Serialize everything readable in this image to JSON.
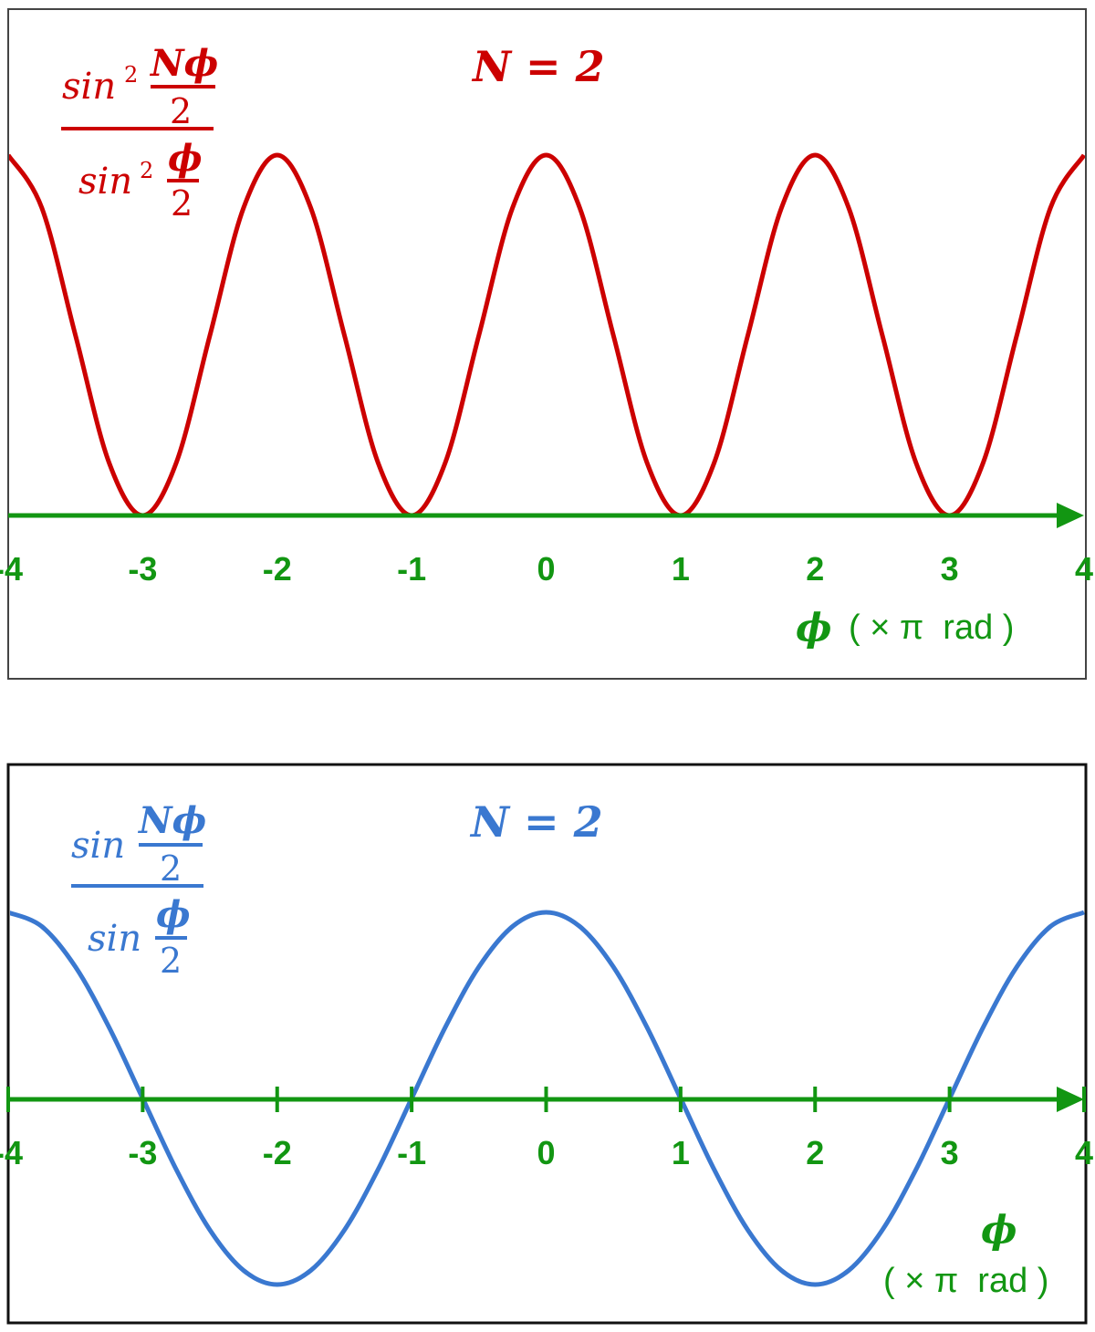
{
  "colors": {
    "top_curve": "#cc0000",
    "bottom_curve": "#3a78d0",
    "axis": "#129612",
    "frame": "#111111"
  },
  "chart_data": [
    {
      "type": "line",
      "title": "N = 2",
      "formula": {
        "num_fn": "sin",
        "num_power": "2",
        "num_arg_top": "Nϕ",
        "num_arg_bottom": "2",
        "den_fn": "sin",
        "den_power": "2",
        "den_arg_top": "ϕ",
        "den_arg_bottom": "2"
      },
      "xlabel": {
        "symbol": "ϕ",
        "unit": "( × π  rad )"
      },
      "xlim": [
        -4,
        4
      ],
      "ylim": [
        0,
        4
      ],
      "x_ticks": [
        "-4",
        "-3",
        "-2",
        "-1",
        "0",
        "1",
        "2",
        "3",
        "4"
      ],
      "tick_marks": false,
      "grid": false,
      "x": [
        -4,
        -3.75,
        -3.5,
        -3.25,
        -3,
        -2.75,
        -2.5,
        -2.25,
        -2,
        -1.75,
        -1.5,
        -1.25,
        -1,
        -0.75,
        -0.5,
        -0.25,
        0,
        0.25,
        0.5,
        0.75,
        1,
        1.25,
        1.5,
        1.75,
        2,
        2.25,
        2.5,
        2.75,
        3,
        3.25,
        3.5,
        3.75,
        4
      ],
      "series": [
        {
          "values": [
            4,
            3.414,
            2,
            0.586,
            0,
            0.586,
            2,
            3.414,
            4,
            3.414,
            2,
            0.586,
            0,
            0.586,
            2,
            3.414,
            4,
            3.414,
            2,
            0.586,
            0,
            0.586,
            2,
            3.414,
            4,
            3.414,
            2,
            0.586,
            0,
            0.586,
            2,
            3.414,
            4
          ]
        }
      ]
    },
    {
      "type": "line",
      "title": "N = 2",
      "formula": {
        "num_fn": "sin",
        "num_arg_top": "Nϕ",
        "num_arg_bottom": "2",
        "den_fn": "sin",
        "den_arg_top": "ϕ",
        "den_arg_bottom": "2"
      },
      "xlabel": {
        "symbol": "ϕ",
        "unit": "( × π  rad )"
      },
      "xlim": [
        -4,
        4
      ],
      "ylim": [
        -2,
        2
      ],
      "x_ticks": [
        "-4",
        "-3",
        "-2",
        "-1",
        "0",
        "1",
        "2",
        "3",
        "4"
      ],
      "tick_marks": true,
      "grid": false,
      "x": [
        -4,
        -3.75,
        -3.5,
        -3.25,
        -3,
        -2.75,
        -2.5,
        -2.25,
        -2,
        -1.75,
        -1.5,
        -1.25,
        -1,
        -0.75,
        -0.5,
        -0.25,
        0,
        0.25,
        0.5,
        0.75,
        1,
        1.25,
        1.5,
        1.75,
        2,
        2.25,
        2.5,
        2.75,
        3,
        3.25,
        3.5,
        3.75,
        4
      ],
      "series": [
        {
          "values": [
            2,
            1.848,
            1.414,
            0.765,
            0,
            -0.765,
            -1.414,
            -1.848,
            -2,
            -1.848,
            -1.414,
            -0.765,
            0,
            0.765,
            1.414,
            1.848,
            2,
            1.848,
            1.414,
            0.765,
            0,
            -0.765,
            -1.414,
            -1.848,
            -2,
            -1.848,
            -1.414,
            -0.765,
            0,
            0.765,
            1.414,
            1.848,
            2
          ]
        }
      ]
    }
  ]
}
